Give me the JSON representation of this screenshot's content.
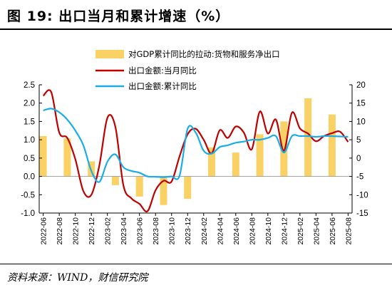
{
  "header": {
    "title": "图 19:  出口当月和累计增速（%）"
  },
  "footer": {
    "source": "资料来源：WIND，财信研究院"
  },
  "colors": {
    "bar": "#FAD165",
    "line_monthly": "#C00000",
    "line_cumulative": "#1BADE8"
  },
  "chart_data": {
    "type": "bar+line",
    "x_tick_labels": [
      "2022-06",
      "2022-08",
      "2022-10",
      "2022-12",
      "2023-02",
      "2023-04",
      "2023-06",
      "2023-08",
      "2023-10",
      "2023-12",
      "2024-02",
      "2024-04",
      "2024-06",
      "2024-08",
      "2024-10",
      "2024-12",
      "2025-02",
      "2025-04",
      "2025-06",
      "2025-08"
    ],
    "left_axis": {
      "ylim": [
        -1.0,
        2.5
      ],
      "ticks": [
        "2.5",
        "2.0",
        "1.5",
        "1.0",
        "0.5",
        "0.0",
        "-0.5",
        "-1.0"
      ]
    },
    "right_axis": {
      "ylim": [
        -15,
        20
      ],
      "ticks": [
        "20",
        "15",
        "10",
        "5",
        "0",
        "-5",
        "-10",
        "-15"
      ]
    },
    "legend": [
      "对GDP累计同比的拉动:货物和服务净出口",
      "出口金额:当月同比",
      "出口金额:累计同比"
    ],
    "bars": {
      "name": "对GDP累计同比的拉动:货物和服务净出口",
      "axis": "left",
      "x": [
        0,
        3,
        6,
        9,
        12,
        15,
        18,
        21,
        24,
        27,
        30,
        33,
        36,
        39
      ],
      "values": [
        1.1,
        1.04,
        0.41,
        -0.24,
        -0.55,
        -0.78,
        -0.61,
        0.79,
        0.65,
        1.15,
        1.5,
        2.13,
        1.69,
        null
      ]
    },
    "series": [
      {
        "name": "出口金额:当月同比",
        "axis": "right",
        "values": [
          17.0,
          18.0,
          7.0,
          5.5,
          -0.3,
          -9.0,
          -10.0,
          -2.0,
          11.0,
          8.5,
          -7.5,
          -11.0,
          -12.5,
          -14.5,
          -8.8,
          -6.2,
          -6.4,
          0.5,
          6.5,
          8.0,
          5.0,
          1.3,
          7.6,
          5.5,
          8.6,
          7.0,
          2.4,
          12.7,
          6.7,
          10.5,
          2.0,
          12.4,
          8.1,
          6.7,
          4.6,
          6.0,
          6.8,
          7.2,
          4.4
        ],
        "x_start": 0
      },
      {
        "name": "出口金额:累计同比",
        "axis": "right",
        "values": [
          13.0,
          13.5,
          12.5,
          10.5,
          7.5,
          3.5,
          -3.5,
          -6.5,
          -1.0,
          1.0,
          -2.5,
          -3.5,
          -4.0,
          -5.0,
          -5.1,
          -5.2,
          -5.0,
          -4.8,
          8.0,
          7.0,
          2.0,
          1.2,
          3.0,
          3.5,
          4.2,
          4.5,
          5.0,
          5.0,
          5.5,
          6.0,
          1.5,
          6.0,
          6.0,
          6.0,
          5.8,
          6.0,
          6.0,
          5.9,
          5.8
        ],
        "x_start": 0
      }
    ],
    "grid": false,
    "legend_position": "top-center"
  }
}
